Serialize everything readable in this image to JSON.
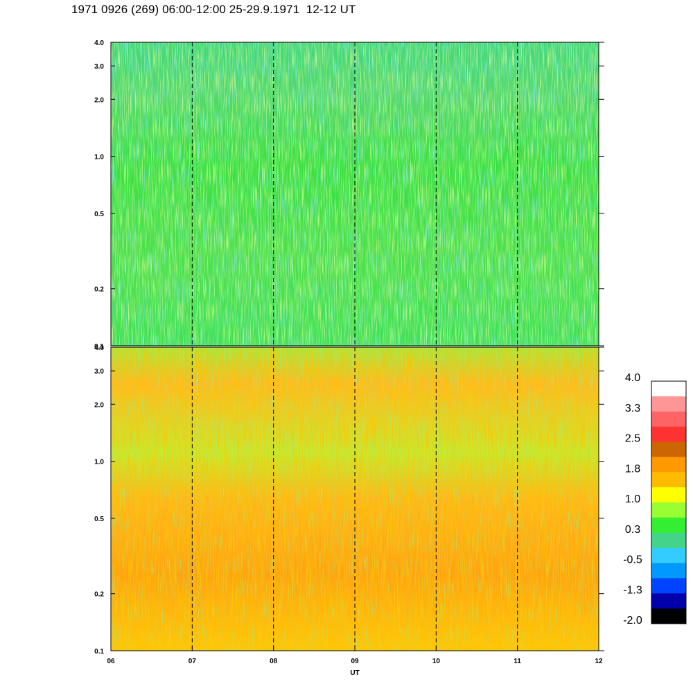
{
  "title": "1971 0926 (269) 06:00-12:00 25-29.9.1971  12-12 UT",
  "chart_data": {
    "type": "heatmap",
    "xlabel": "UT",
    "x_tick_labels": [
      "06",
      "07",
      "08",
      "09",
      "10",
      "11",
      "12"
    ],
    "x_range": [
      6,
      12
    ],
    "y_scale": "log",
    "vertical_dashed_lines_at": [
      7,
      8,
      9,
      10,
      11
    ],
    "panels": [
      {
        "y_tick_labels": [
          "4.0",
          "3.0",
          "2.0",
          "1.0",
          "0.5",
          "0.2",
          "0.1"
        ],
        "y_tick_values": [
          4.0,
          3.0,
          2.0,
          1.0,
          0.5,
          0.2,
          0.1
        ],
        "ylim": [
          0.1,
          4.0
        ],
        "dominant_level": "0.3 to 1.0 (green)"
      },
      {
        "y_tick_labels": [
          "4.0",
          "3.0",
          "2.0",
          "1.0",
          "0.5",
          "0.2",
          "0.1"
        ],
        "y_tick_values": [
          4.0,
          3.0,
          2.0,
          1.0,
          0.5,
          0.2,
          0.1
        ],
        "ylim": [
          0.1,
          4.0
        ],
        "dominant_level": "1.0 to 2.5 (yellow-orange)"
      }
    ],
    "colorbar": {
      "labels": [
        "4.0",
        "3.3",
        "2.5",
        "1.8",
        "1.0",
        "0.3",
        "-0.5",
        "-1.3",
        "-2.0"
      ],
      "colors_top_to_bottom": [
        "#ffffff",
        "#ff9696",
        "#ff6464",
        "#ff3232",
        "#cc6600",
        "#ff9900",
        "#ffbb00",
        "#ffff00",
        "#99ff33",
        "#33ee33",
        "#44d488",
        "#33ccff",
        "#0099ff",
        "#0044ff",
        "#0000aa",
        "#000000"
      ]
    }
  }
}
